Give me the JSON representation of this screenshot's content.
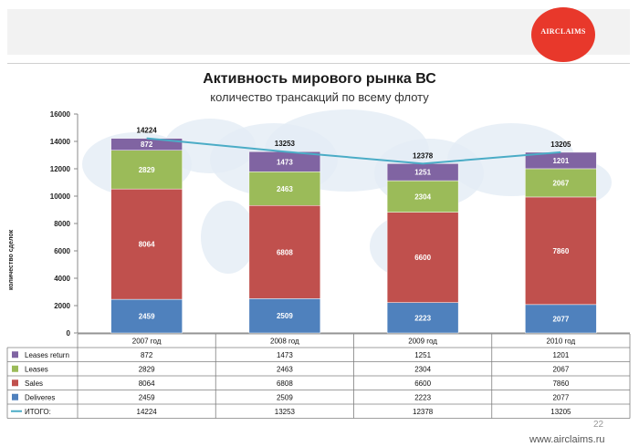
{
  "header": {
    "logo_text": "AIRCLAIMS"
  },
  "chart_data": {
    "type": "bar",
    "stacked": true,
    "title": "Активность мирового рынка ВС",
    "subtitle": "количество трансакций по всему флоту",
    "ylabel": "количество сделок",
    "xlabel": "",
    "ylim": [
      0,
      16000
    ],
    "yticks": [
      0,
      2000,
      4000,
      6000,
      8000,
      10000,
      12000,
      14000,
      16000
    ],
    "categories": [
      "2007 год",
      "2008 год",
      "2009 год",
      "2010 год"
    ],
    "series": [
      {
        "name": "Deliveres",
        "values": [
          2459,
          2509,
          2223,
          2077
        ],
        "color": "#4f81bd"
      },
      {
        "name": "Sales",
        "values": [
          8064,
          6808,
          6600,
          7860
        ],
        "color": "#c0504d"
      },
      {
        "name": "Leases",
        "values": [
          2829,
          2463,
          2304,
          2067
        ],
        "color": "#9bbb59"
      },
      {
        "name": "Leases return",
        "values": [
          872,
          1473,
          1251,
          1201
        ],
        "color": "#8064a2"
      }
    ],
    "total": {
      "name": "ИТОГО:",
      "values": [
        14224,
        13253,
        12378,
        13205
      ],
      "color": "#4bacc6"
    },
    "table_row_order": [
      "Leases return",
      "Leases",
      "Sales",
      "Deliveres",
      "ИТОГО:"
    ],
    "grid": false,
    "legend": "data-table"
  },
  "footer": {
    "page_number": "22",
    "website": "www.airclaims.ru"
  }
}
